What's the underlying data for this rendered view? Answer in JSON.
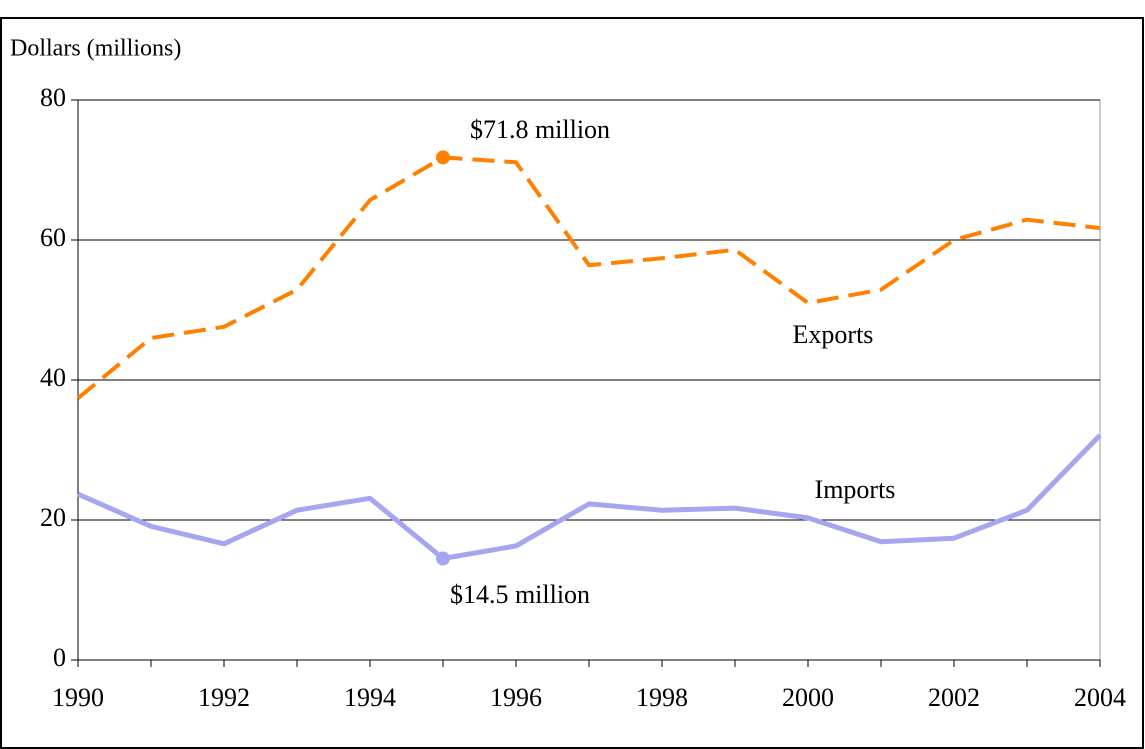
{
  "chart_data": {
    "type": "line",
    "y_label": "Dollars (millions)",
    "x": [
      1990,
      1991,
      1992,
      1993,
      1994,
      1995,
      1996,
      1997,
      1998,
      1999,
      2000,
      2001,
      2002,
      2003,
      2004
    ],
    "series": [
      {
        "name": "Exports",
        "color": "#ff8000",
        "dashed": true,
        "values": [
          37.4,
          46,
          47.6,
          52.9,
          65.7,
          71.8,
          71.1,
          56.4,
          57.4,
          58.6,
          51,
          52.9,
          60,
          62.9,
          61.7
        ]
      },
      {
        "name": "Imports",
        "color": "#a6a6f0",
        "dashed": false,
        "values": [
          23.7,
          19.1,
          16.6,
          21.4,
          23.1,
          14.5,
          16.3,
          22.3,
          21.4,
          21.7,
          20.3,
          16.9,
          17.4,
          21.4,
          32.1
        ]
      }
    ],
    "annotations": [
      "$71.8 million",
      "$14.5 million"
    ],
    "xlim": [
      1990,
      2004
    ],
    "xticks": [
      1990,
      1992,
      1994,
      1996,
      1998,
      2000,
      2002,
      2004
    ],
    "ylim": [
      0,
      80
    ],
    "yticks": [
      0,
      20,
      40,
      60,
      80
    ],
    "grid": true
  }
}
